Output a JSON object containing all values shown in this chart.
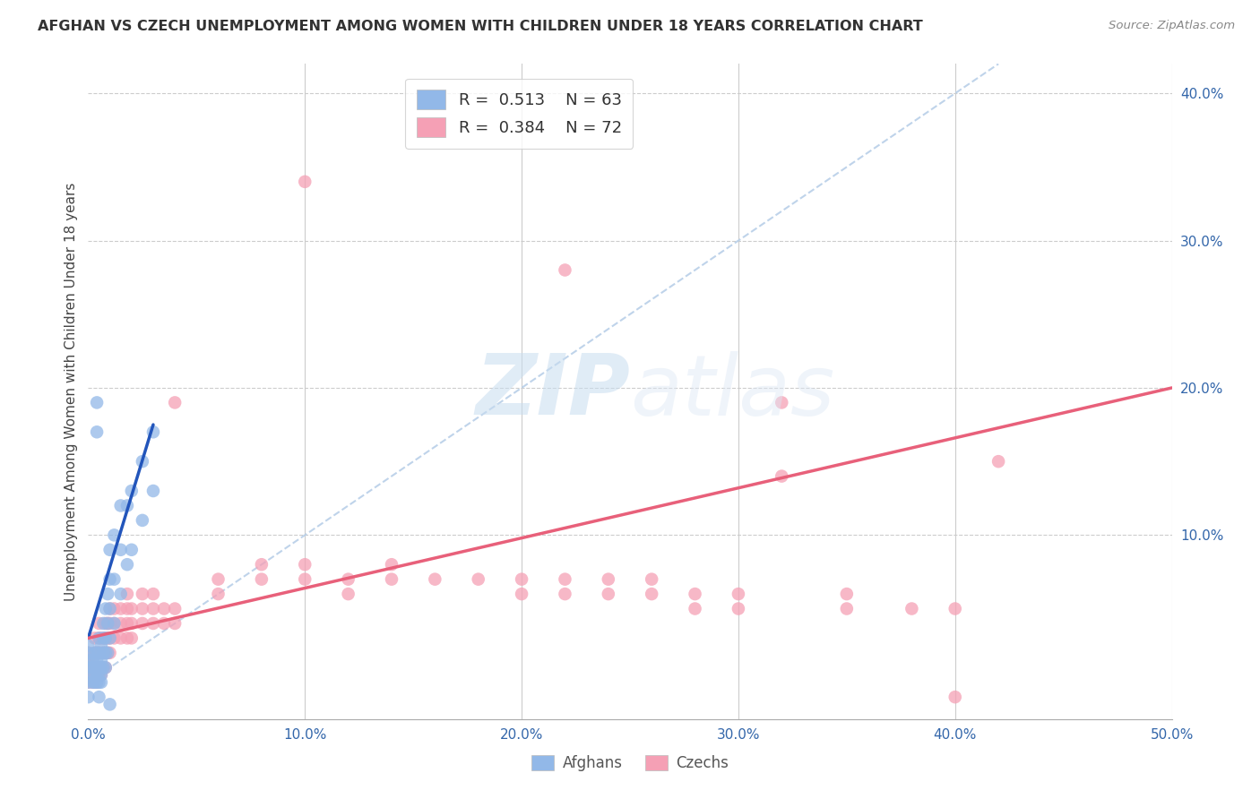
{
  "title": "AFGHAN VS CZECH UNEMPLOYMENT AMONG WOMEN WITH CHILDREN UNDER 18 YEARS CORRELATION CHART",
  "source": "Source: ZipAtlas.com",
  "ylabel": "Unemployment Among Women with Children Under 18 years",
  "xlim": [
    0.0,
    0.5
  ],
  "ylim": [
    -0.025,
    0.42
  ],
  "xticks": [
    0.0,
    0.1,
    0.2,
    0.3,
    0.4,
    0.5
  ],
  "xticklabels": [
    "0.0%",
    "10.0%",
    "20.0%",
    "30.0%",
    "40.0%",
    "50.0%"
  ],
  "yticks_right": [
    0.1,
    0.2,
    0.3,
    0.4
  ],
  "yticklabels_right": [
    "10.0%",
    "20.0%",
    "30.0%",
    "40.0%"
  ],
  "legend_R_afghan": "0.513",
  "legend_N_afghan": "63",
  "legend_R_czech": "0.384",
  "legend_N_czech": "72",
  "afghan_color": "#92b8e8",
  "czech_color": "#f5a0b5",
  "afghan_line_color": "#2255bb",
  "czech_line_color": "#e8607a",
  "diagonal_color": "#b8cfe8",
  "watermark_zip": "ZIP",
  "watermark_atlas": "atlas",
  "afghan_points": [
    [
      0.0,
      0.0
    ],
    [
      0.0,
      0.01
    ],
    [
      0.0,
      0.015
    ],
    [
      0.0,
      0.02
    ],
    [
      0.0,
      0.025
    ],
    [
      0.002,
      0.0
    ],
    [
      0.002,
      0.005
    ],
    [
      0.002,
      0.01
    ],
    [
      0.002,
      0.015
    ],
    [
      0.003,
      0.0
    ],
    [
      0.003,
      0.005
    ],
    [
      0.003,
      0.01
    ],
    [
      0.003,
      0.02
    ],
    [
      0.004,
      0.0
    ],
    [
      0.004,
      0.005
    ],
    [
      0.004,
      0.01
    ],
    [
      0.004,
      0.015
    ],
    [
      0.004,
      0.02
    ],
    [
      0.005,
      0.0
    ],
    [
      0.005,
      0.005
    ],
    [
      0.005,
      0.01
    ],
    [
      0.005,
      0.02
    ],
    [
      0.005,
      0.03
    ],
    [
      0.006,
      0.0
    ],
    [
      0.006,
      0.005
    ],
    [
      0.006,
      0.01
    ],
    [
      0.006,
      0.015
    ],
    [
      0.006,
      0.025
    ],
    [
      0.007,
      0.01
    ],
    [
      0.007,
      0.02
    ],
    [
      0.007,
      0.03
    ],
    [
      0.007,
      0.04
    ],
    [
      0.008,
      0.01
    ],
    [
      0.008,
      0.02
    ],
    [
      0.008,
      0.03
    ],
    [
      0.008,
      0.05
    ],
    [
      0.009,
      0.02
    ],
    [
      0.009,
      0.04
    ],
    [
      0.009,
      0.06
    ],
    [
      0.01,
      0.03
    ],
    [
      0.01,
      0.05
    ],
    [
      0.01,
      0.07
    ],
    [
      0.01,
      0.09
    ],
    [
      0.012,
      0.04
    ],
    [
      0.012,
      0.07
    ],
    [
      0.012,
      0.1
    ],
    [
      0.015,
      0.06
    ],
    [
      0.015,
      0.09
    ],
    [
      0.015,
      0.12
    ],
    [
      0.018,
      0.08
    ],
    [
      0.018,
      0.12
    ],
    [
      0.02,
      0.09
    ],
    [
      0.02,
      0.13
    ],
    [
      0.025,
      0.11
    ],
    [
      0.025,
      0.15
    ],
    [
      0.03,
      0.13
    ],
    [
      0.03,
      0.17
    ],
    [
      0.004,
      0.17
    ],
    [
      0.004,
      0.19
    ],
    [
      0.0,
      -0.01
    ],
    [
      0.005,
      -0.01
    ],
    [
      0.01,
      -0.015
    ]
  ],
  "czech_points": [
    [
      0.0,
      0.0
    ],
    [
      0.0,
      0.005
    ],
    [
      0.0,
      0.01
    ],
    [
      0.0,
      0.015
    ],
    [
      0.0,
      0.02
    ],
    [
      0.002,
      0.0
    ],
    [
      0.002,
      0.005
    ],
    [
      0.002,
      0.01
    ],
    [
      0.002,
      0.015
    ],
    [
      0.003,
      0.005
    ],
    [
      0.003,
      0.01
    ],
    [
      0.003,
      0.02
    ],
    [
      0.003,
      0.03
    ],
    [
      0.004,
      0.0
    ],
    [
      0.004,
      0.005
    ],
    [
      0.004,
      0.01
    ],
    [
      0.004,
      0.02
    ],
    [
      0.005,
      0.005
    ],
    [
      0.005,
      0.01
    ],
    [
      0.005,
      0.02
    ],
    [
      0.005,
      0.03
    ],
    [
      0.005,
      0.04
    ],
    [
      0.006,
      0.005
    ],
    [
      0.006,
      0.01
    ],
    [
      0.006,
      0.02
    ],
    [
      0.006,
      0.03
    ],
    [
      0.007,
      0.01
    ],
    [
      0.007,
      0.02
    ],
    [
      0.007,
      0.03
    ],
    [
      0.008,
      0.01
    ],
    [
      0.008,
      0.02
    ],
    [
      0.008,
      0.03
    ],
    [
      0.008,
      0.04
    ],
    [
      0.009,
      0.02
    ],
    [
      0.009,
      0.03
    ],
    [
      0.009,
      0.04
    ],
    [
      0.01,
      0.02
    ],
    [
      0.01,
      0.03
    ],
    [
      0.01,
      0.04
    ],
    [
      0.01,
      0.05
    ],
    [
      0.012,
      0.03
    ],
    [
      0.012,
      0.04
    ],
    [
      0.012,
      0.05
    ],
    [
      0.015,
      0.03
    ],
    [
      0.015,
      0.04
    ],
    [
      0.015,
      0.05
    ],
    [
      0.018,
      0.03
    ],
    [
      0.018,
      0.04
    ],
    [
      0.018,
      0.05
    ],
    [
      0.018,
      0.06
    ],
    [
      0.02,
      0.03
    ],
    [
      0.02,
      0.04
    ],
    [
      0.02,
      0.05
    ],
    [
      0.025,
      0.04
    ],
    [
      0.025,
      0.05
    ],
    [
      0.025,
      0.06
    ],
    [
      0.03,
      0.04
    ],
    [
      0.03,
      0.05
    ],
    [
      0.03,
      0.06
    ],
    [
      0.035,
      0.04
    ],
    [
      0.035,
      0.05
    ],
    [
      0.04,
      0.04
    ],
    [
      0.04,
      0.05
    ],
    [
      0.04,
      0.19
    ],
    [
      0.06,
      0.06
    ],
    [
      0.06,
      0.07
    ],
    [
      0.08,
      0.07
    ],
    [
      0.08,
      0.08
    ],
    [
      0.1,
      0.07
    ],
    [
      0.1,
      0.08
    ],
    [
      0.12,
      0.06
    ],
    [
      0.12,
      0.07
    ],
    [
      0.14,
      0.07
    ],
    [
      0.14,
      0.08
    ],
    [
      0.16,
      0.07
    ],
    [
      0.18,
      0.07
    ],
    [
      0.2,
      0.06
    ],
    [
      0.2,
      0.07
    ],
    [
      0.22,
      0.06
    ],
    [
      0.22,
      0.07
    ],
    [
      0.24,
      0.06
    ],
    [
      0.24,
      0.07
    ],
    [
      0.26,
      0.06
    ],
    [
      0.26,
      0.07
    ],
    [
      0.28,
      0.05
    ],
    [
      0.28,
      0.06
    ],
    [
      0.3,
      0.05
    ],
    [
      0.3,
      0.06
    ],
    [
      0.32,
      0.14
    ],
    [
      0.35,
      0.05
    ],
    [
      0.35,
      0.06
    ],
    [
      0.38,
      0.05
    ],
    [
      0.4,
      0.05
    ],
    [
      0.4,
      -0.01
    ],
    [
      0.1,
      0.34
    ],
    [
      0.22,
      0.28
    ],
    [
      0.32,
      0.19
    ],
    [
      0.42,
      0.15
    ]
  ],
  "afghan_line": {
    "x0": 0.0,
    "y0": 0.03,
    "x1": 0.03,
    "y1": 0.175
  },
  "czech_line": {
    "x0": 0.0,
    "y0": 0.03,
    "x1": 0.5,
    "y1": 0.2
  },
  "diagonal_line": {
    "x0": 0.0,
    "y0": 0.0,
    "x1": 0.42,
    "y1": 0.42
  }
}
